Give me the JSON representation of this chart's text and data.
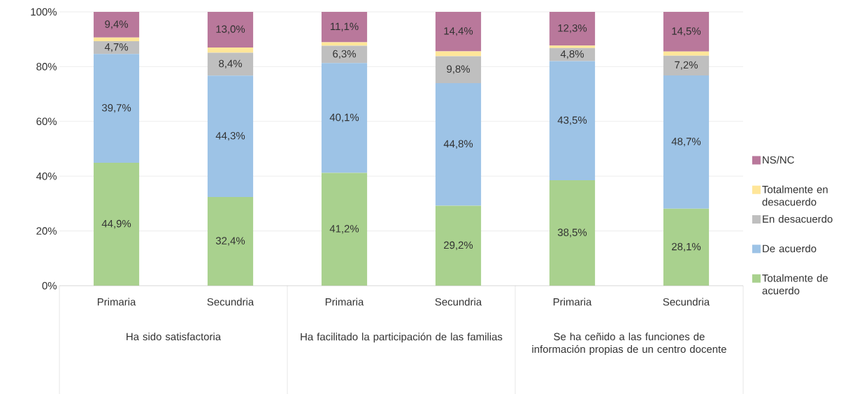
{
  "chart_data": {
    "type": "bar",
    "stacked": true,
    "categories": [
      "Primaria",
      "Secundria",
      "Primaria",
      "Secundria",
      "Primaria",
      "Secundria"
    ],
    "annotations": [
      "Ha sido satisfactoria",
      "Ha facilitado la participación de las familias",
      "Se ha ceñido a las funciones de información propias de un centro docente"
    ],
    "series": [
      {
        "name": "Totalmente de acuerdo",
        "color": "#a9d18e",
        "values": [
          44.9,
          32.4,
          41.2,
          29.2,
          38.5,
          28.1
        ],
        "value_labels": [
          "44,9%",
          "32,4%",
          "41,2%",
          "29,2%",
          "38,5%",
          "28,1%"
        ]
      },
      {
        "name": "De acuerdo",
        "color": "#9dc3e6",
        "values": [
          39.7,
          44.3,
          40.1,
          44.8,
          43.5,
          48.7
        ],
        "value_labels": [
          "39,7%",
          "44,3%",
          "40,1%",
          "44,8%",
          "43,5%",
          "48,7%"
        ]
      },
      {
        "name": "En desacuerdo",
        "color": "#bfbfbf",
        "values": [
          4.7,
          8.4,
          6.3,
          9.8,
          4.8,
          7.2
        ],
        "value_labels": [
          "4,7%",
          "8,4%",
          "6,3%",
          "9,8%",
          "4,8%",
          "7,2%"
        ]
      },
      {
        "name": "Totalmente en desacuerdo",
        "color": "#ffe699",
        "values": [
          1.3,
          1.9,
          1.3,
          1.8,
          0.9,
          1.5
        ]
      },
      {
        "name": "NS/NC",
        "color": "#b9789b",
        "values": [
          9.4,
          13.0,
          11.1,
          14.4,
          12.3,
          14.5
        ],
        "value_labels": [
          "9,4%",
          "13,0%",
          "11,1%",
          "14,4%",
          "12,3%",
          "14,5%"
        ]
      }
    ],
    "ylim": [
      0,
      100
    ],
    "yticks": [
      {
        "value": 0,
        "label": "0%"
      },
      {
        "value": 20,
        "label": "20%"
      },
      {
        "value": 40,
        "label": "40%"
      },
      {
        "value": 60,
        "label": "60%"
      },
      {
        "value": 80,
        "label": "80%"
      },
      {
        "value": 100,
        "label": "100%"
      }
    ],
    "grid": "y",
    "legend": "right"
  }
}
